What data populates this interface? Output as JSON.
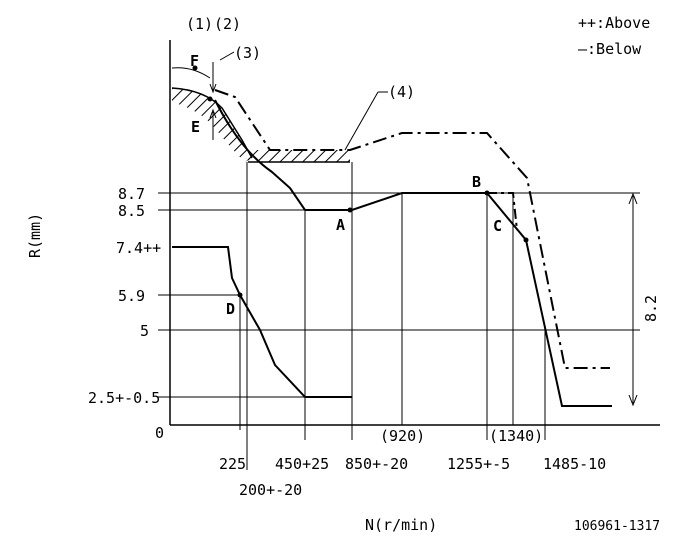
{
  "legend": {
    "above": "++:Above",
    "below": "—:Below"
  },
  "labels": {
    "l1": "(1)",
    "l2": "(2)",
    "l3": "(3)",
    "l4": "(4)",
    "F": "F",
    "E": "E",
    "A": "A",
    "B": "B",
    "C": "C",
    "D": "D"
  },
  "y_axis": {
    "label": "R(mm)",
    "ticks": [
      "8.7",
      "8.5",
      "7.4++",
      "5.9",
      "5",
      "2.5+-0.5",
      "0"
    ]
  },
  "x_axis": {
    "label": "N(r/min)",
    "ticks": [
      "225",
      "200+-20",
      "450+25",
      "850+-20",
      "(920)",
      "1255+-5",
      "(1340)",
      "1485-10"
    ]
  },
  "dimension": "8.2",
  "footer_code": "106961-1317"
}
